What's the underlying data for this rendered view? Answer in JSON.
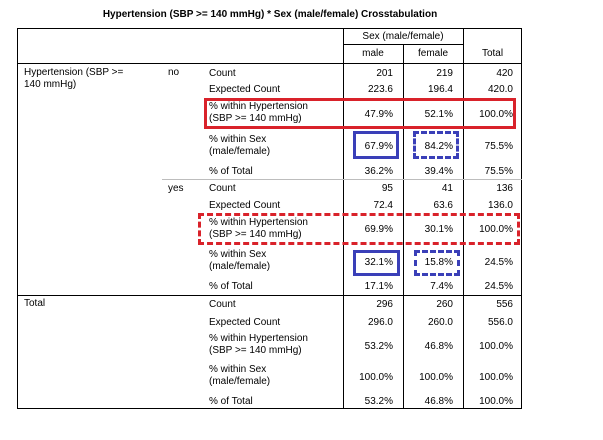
{
  "title": "Hypertension (SBP >= 140 mmHg) * Sex (male/female) Crosstabulation",
  "header": {
    "group": "Sex (male/female)",
    "male": "male",
    "female": "female",
    "total": "Total"
  },
  "groups": {
    "hypertension_line1": "Hypertension (SBP >=",
    "hypertension_line2": "140 mmHg)",
    "no": "no",
    "yes": "yes",
    "total": "Total"
  },
  "stats": {
    "count": "Count",
    "expected": "Expected Count",
    "within_hyp_1": "% within Hypertension",
    "within_hyp_2": "(SBP >= 140 mmHg)",
    "within_sex_1": "% within Sex",
    "within_sex_2": "(male/female)",
    "pct_total": "% of Total"
  },
  "rows": {
    "no": {
      "count": [
        "201",
        "219",
        "420"
      ],
      "expected": [
        "223.6",
        "196.4",
        "420.0"
      ],
      "within_hyp": [
        "47.9%",
        "52.1%",
        "100.0%"
      ],
      "within_sex": [
        "67.9%",
        "84.2%",
        "75.5%"
      ],
      "pct_total": [
        "36.2%",
        "39.4%",
        "75.5%"
      ]
    },
    "yes": {
      "count": [
        "95",
        "41",
        "136"
      ],
      "expected": [
        "72.4",
        "63.6",
        "136.0"
      ],
      "within_hyp": [
        "69.9%",
        "30.1%",
        "100.0%"
      ],
      "within_sex": [
        "32.1%",
        "15.8%",
        "24.5%"
      ],
      "pct_total": [
        "17.1%",
        "7.4%",
        "24.5%"
      ]
    },
    "total": {
      "count": [
        "296",
        "260",
        "556"
      ],
      "expected": [
        "296.0",
        "260.0",
        "556.0"
      ],
      "within_hyp": [
        "53.2%",
        "46.8%",
        "100.0%"
      ],
      "within_sex": [
        "100.0%",
        "100.0%",
        "100.0%"
      ],
      "pct_total": [
        "53.2%",
        "46.8%",
        "100.0%"
      ]
    }
  },
  "highlight_colors": {
    "red": "#d9222a",
    "blue": "#3a3fb8"
  }
}
